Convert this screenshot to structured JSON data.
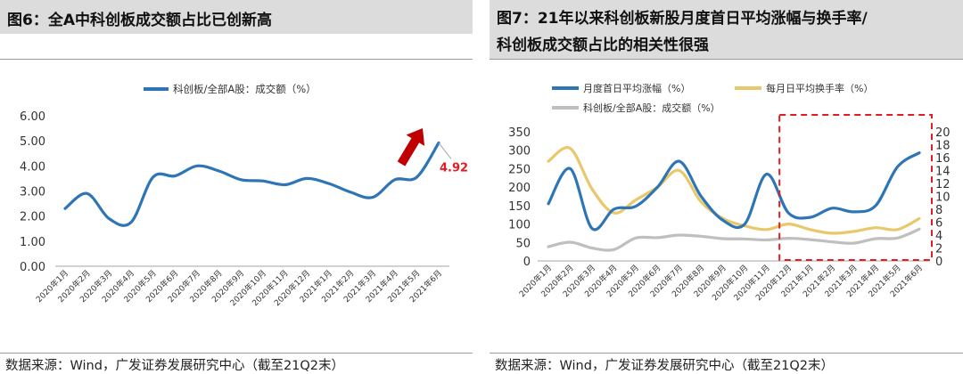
{
  "left": {
    "title": "图6：全A中科创板成交额占比已创新高",
    "source": "数据来源：Wind，广发证券发展研究中心（截至21Q2末）"
  },
  "right": {
    "title_line1": "图7：21年以来科创板新股月度首日平均涨幅与换手率/",
    "title_line2": "科创板成交额占比的相关性很强",
    "source": "数据来源：Wind，广发证券发展研究中心（截至21Q2末）"
  },
  "chart_data": [
    {
      "type": "line",
      "title": "图6：全A中科创板成交额占比已创新高",
      "categories": [
        "2020年1月",
        "2020年2月",
        "2020年3月",
        "2020年4月",
        "2020年5月",
        "2020年6月",
        "2020年7月",
        "2020年8月",
        "2020年9月",
        "2020年10月",
        "2020年11月",
        "2020年12月",
        "2021年1月",
        "2021年2月",
        "2021年3月",
        "2021年4月",
        "2021年5月",
        "2021年6月"
      ],
      "series": [
        {
          "name": "科创板/全部A股：成交额（%）",
          "color": "#2e75b6",
          "values": [
            2.3,
            2.9,
            1.9,
            1.75,
            3.55,
            3.6,
            4.0,
            3.8,
            3.45,
            3.4,
            3.25,
            3.5,
            3.3,
            2.95,
            2.75,
            3.45,
            3.55,
            4.92
          ]
        }
      ],
      "yticks": [
        "0.00",
        "1.00",
        "2.00",
        "3.00",
        "4.00",
        "5.00",
        "6.00"
      ],
      "ylim": [
        0,
        6
      ],
      "annotation": {
        "label": "4.92",
        "color": "#e31b23"
      },
      "arrow_color": "#c00000"
    },
    {
      "type": "line",
      "title": "图7：21年以来科创板新股月度首日平均涨幅与换手率/科创板成交额占比的相关性很强",
      "categories": [
        "2020年1月",
        "2020年2月",
        "2020年3月",
        "2020年4月",
        "2020年5月",
        "2020年6月",
        "2020年7月",
        "2020年8月",
        "2020年9月",
        "2020年10月",
        "2020年11月",
        "2020年12月",
        "2021年1月",
        "2021年2月",
        "2021年3月",
        "2021年4月",
        "2021年5月",
        "2021年6月"
      ],
      "series": [
        {
          "name": "月度首日平均涨幅（%）",
          "axis": "left",
          "color": "#2e75b6",
          "values": [
            155,
            250,
            88,
            140,
            148,
            200,
            270,
            175,
            110,
            100,
            235,
            130,
            118,
            143,
            133,
            150,
            255,
            293
          ]
        },
        {
          "name": "每月日平均换手率（%）",
          "axis": "left",
          "color": "#e8c86a",
          "values": [
            270,
            305,
            195,
            130,
            165,
            200,
            245,
            160,
            115,
            95,
            85,
            100,
            85,
            75,
            80,
            90,
            85,
            115
          ]
        },
        {
          "name": "科创板/全部A股：成交额（%）",
          "axis": "right",
          "color": "#bfbfbf",
          "values": [
            2.2,
            2.9,
            2.0,
            1.75,
            3.55,
            3.6,
            4.0,
            3.8,
            3.45,
            3.4,
            3.25,
            3.5,
            3.3,
            2.95,
            2.75,
            3.45,
            3.55,
            4.92
          ]
        }
      ],
      "yticks_left": [
        "0",
        "50",
        "100",
        "150",
        "200",
        "250",
        "300",
        "350"
      ],
      "ylim_left": [
        0,
        350
      ],
      "yticks_right": [
        "0",
        "2",
        "4",
        "6",
        "8",
        "10",
        "12",
        "14",
        "16",
        "18",
        "20"
      ],
      "ylim_right": [
        0,
        20
      ],
      "highlight_box": "2020年12月 – 2021年6月 (dashed red)"
    }
  ]
}
